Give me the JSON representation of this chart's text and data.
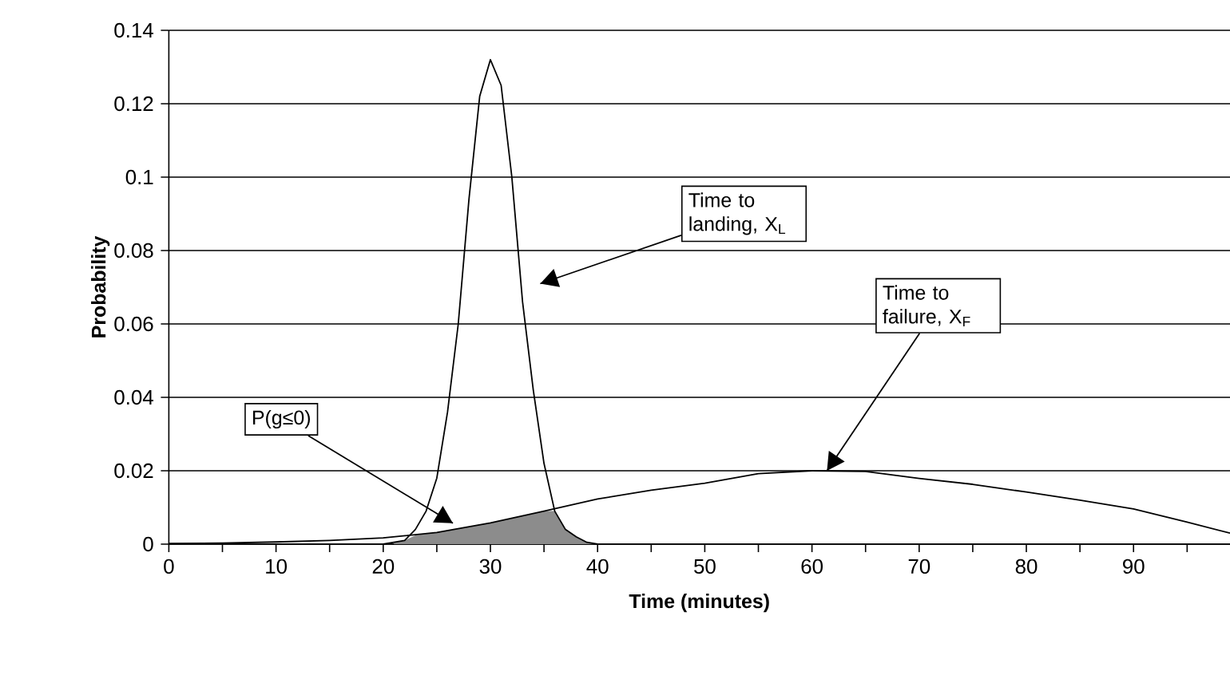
{
  "chart_data": {
    "type": "line",
    "xlabel": "Time (minutes)",
    "ylabel": "Probability",
    "xlim": [
      0,
      99
    ],
    "ylim": [
      0,
      0.14
    ],
    "xticks": [
      0,
      {
        "value": 5,
        "label": null
      },
      10,
      {
        "value": 15,
        "label": null
      },
      20,
      {
        "value": 25,
        "label": null
      },
      30,
      {
        "value": 35,
        "label": null
      },
      40,
      {
        "value": 45,
        "label": null
      },
      50,
      {
        "value": 55,
        "label": null
      },
      60,
      {
        "value": 65,
        "label": null
      },
      70,
      {
        "value": 75,
        "label": null
      },
      80,
      {
        "value": 85,
        "label": null
      },
      90,
      {
        "value": 95,
        "label": null
      }
    ],
    "yticks": [
      0,
      0.02,
      0.04,
      0.06,
      0.08,
      0.1,
      0.12,
      0.14
    ],
    "grid": "y",
    "legend": false,
    "marker": "none",
    "line_style": "solid",
    "series": [
      {
        "type": "area",
        "color": "#8c8c8c",
        "x": [
          21,
          22,
          23,
          24,
          25,
          26,
          27,
          28,
          29,
          30,
          31,
          32,
          33,
          34,
          35,
          36,
          37,
          38,
          39,
          40
        ],
        "values": [
          0.0005,
          0.001,
          0.0024,
          0.0028,
          0.0032,
          0.0037,
          0.0042,
          0.0047,
          0.0053,
          0.0058,
          0.0064,
          0.0071,
          0.0077,
          0.0083,
          0.009,
          0.009,
          0.004,
          0.002,
          0.0005,
          0
        ]
      },
      {
        "color": "#000000",
        "x": [
          0,
          5,
          10,
          15,
          20,
          25,
          30,
          35,
          40,
          45,
          50,
          55,
          60,
          65,
          70,
          75,
          80,
          85,
          90,
          95,
          99
        ],
        "values": [
          0.0002,
          0.0003,
          0.0006,
          0.001,
          0.0017,
          0.0032,
          0.0058,
          0.009,
          0.0123,
          0.0147,
          0.0166,
          0.0192,
          0.02,
          0.0198,
          0.0179,
          0.0163,
          0.0142,
          0.012,
          0.0096,
          0.006,
          0.003
        ]
      },
      {
        "color": "#000000",
        "x": [
          20,
          21,
          22,
          23,
          24,
          25,
          26,
          27,
          28,
          29,
          30,
          31,
          32,
          33,
          34,
          35,
          36,
          37,
          38,
          39,
          40
        ],
        "values": [
          0,
          0.0005,
          0.001,
          0.004,
          0.009,
          0.018,
          0.036,
          0.06,
          0.094,
          0.122,
          0.132,
          0.125,
          0.1,
          0.066,
          0.042,
          0.022,
          0.009,
          0.004,
          0.002,
          0.0005,
          0
        ]
      }
    ],
    "annotations": [
      "Time to landing, X$_{L}$",
      {
        "text": "Time to failure, X$_{F}$",
        "x": 61.4,
        "y": 0.02
      },
      {
        "text": "P(g≤0)",
        "x": 26.5,
        "y": 0.0057
      }
    ]
  }
}
